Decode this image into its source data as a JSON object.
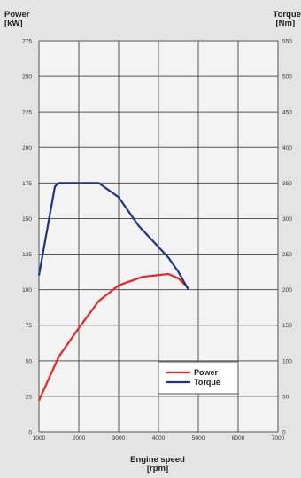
{
  "chart_data": {
    "type": "line",
    "y_left_label": [
      "Power",
      "[kW]"
    ],
    "y_right_label": [
      "Torque",
      "[Nm]"
    ],
    "x_label": [
      "Engine speed",
      "[rpm]"
    ],
    "xlim": [
      1000,
      7000
    ],
    "ylim_left": [
      0,
      275
    ],
    "ylim_right": [
      0,
      550
    ],
    "x_ticks": [
      1000,
      2000,
      3000,
      4000,
      5000,
      6000,
      7000
    ],
    "y_left_ticks": [
      0,
      25,
      50,
      75,
      100,
      125,
      150,
      175,
      200,
      225,
      250,
      275
    ],
    "y_right_ticks": [
      0,
      50,
      100,
      150,
      200,
      250,
      300,
      350,
      400,
      450,
      500,
      550
    ],
    "grid": true,
    "legend_position": "bottom-right",
    "series": [
      {
        "name": "Power",
        "axis": "left",
        "color": "#e8262a",
        "x": [
          1000,
          1500,
          2000,
          2500,
          3000,
          3600,
          4250,
          4500,
          4750
        ],
        "y": [
          22,
          53,
          73,
          92,
          103,
          109,
          111,
          108,
          101
        ]
      },
      {
        "name": "Torque",
        "axis": "right",
        "color": "#1f3580",
        "x": [
          1000,
          1400,
          1500,
          2000,
          2500,
          3000,
          3500,
          4000,
          4250,
          4500,
          4750
        ],
        "y": [
          220,
          345,
          350,
          350,
          350,
          330,
          290,
          260,
          245,
          225,
          200
        ]
      }
    ]
  }
}
